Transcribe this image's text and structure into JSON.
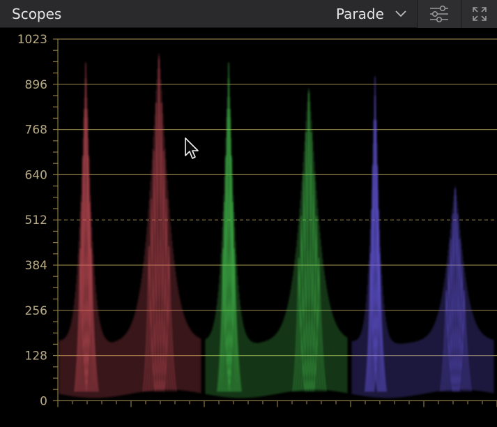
{
  "panel": {
    "title": "Scopes",
    "mode": "Parade",
    "settings_icon": "sliders-icon",
    "expand_icon": "expand-icon"
  },
  "scope": {
    "scale_labels": [
      "1023",
      "896",
      "768",
      "640",
      "512",
      "384",
      "256",
      "128",
      "0"
    ],
    "channels": [
      {
        "name": "red",
        "color": "#e05a64"
      },
      {
        "name": "green",
        "color": "#4fd85a"
      },
      {
        "name": "blue",
        "color": "#7060f0"
      }
    ],
    "grid_color": "#8a7a44"
  }
}
